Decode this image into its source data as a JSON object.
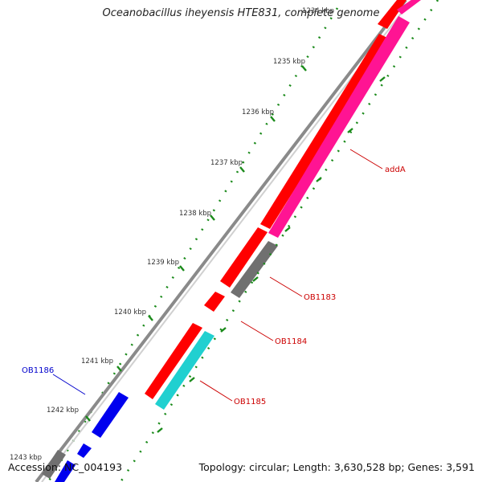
{
  "title": "Oceanobacillus iheyensis HTE831, complete genome",
  "footer": {
    "accession_label": "Accession:",
    "accession": "NC_004193",
    "topology_text": "Topology: circular; Length: 3,630,528 bp; Genes: 3,591"
  },
  "scale": {
    "ticks": [
      "1234 kbp",
      "1235 kbp",
      "1236 kbp",
      "1237 kbp",
      "1238 kbp",
      "1239 kbp",
      "1240 kbp",
      "1241 kbp",
      "1242 kbp",
      "1243 kbp"
    ]
  },
  "colors": {
    "forward_strand": "#ff0000",
    "reverse_strand": "#ff1493",
    "cyan_feature": "#20d0d0",
    "blue_feature": "#0000ee",
    "gray_feature": "#707070",
    "backbone": "#8a8a8a",
    "tick_color": "#1a8a1a",
    "label_red": "#cc0000",
    "label_blue": "#0000cc"
  },
  "genes": [
    {
      "name": "addA",
      "color": "#cc0000"
    },
    {
      "name": "OB1183",
      "color": "#cc0000"
    },
    {
      "name": "OB1184",
      "color": "#cc0000"
    },
    {
      "name": "OB1185",
      "color": "#cc0000"
    },
    {
      "name": "OB1186",
      "color": "#0000cc"
    }
  ]
}
